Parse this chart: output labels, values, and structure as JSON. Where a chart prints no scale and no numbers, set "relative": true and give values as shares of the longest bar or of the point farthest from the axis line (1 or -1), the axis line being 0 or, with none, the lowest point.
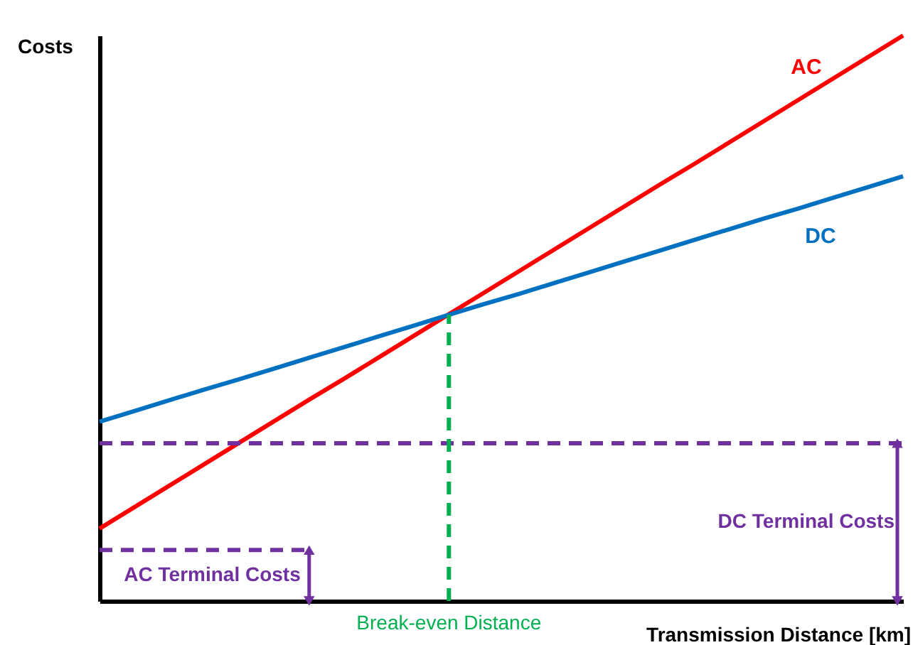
{
  "chart_data": {
    "type": "line",
    "relative": true,
    "xlabel": "Transmission Distance [km]",
    "ylabel": "Costs",
    "marker": "none",
    "categories": [
      null,
      null,
      null,
      null,
      null,
      null,
      null,
      null,
      null,
      null,
      null,
      null,
      null,
      null,
      null,
      null,
      null,
      null,
      null,
      null,
      null,
      null,
      null,
      null
    ],
    "series": [
      {
        "name": "AC",
        "color": "#ff0000",
        "values": [
          0.128,
          0.166,
          0.204,
          0.242,
          0.28,
          0.318,
          0.356,
          0.393,
          0.431,
          0.469,
          0.507,
          0.545,
          0.583,
          0.621,
          0.659,
          0.697,
          0.735,
          0.772,
          0.81,
          0.848,
          0.886,
          0.924,
          0.962,
          1
        ]
      },
      {
        "name": "DC",
        "color": "#0070c0",
        "values": [
          0.317,
          0.336,
          0.355,
          0.374,
          0.392,
          0.411,
          0.43,
          0.449,
          0.468,
          0.487,
          0.506,
          0.525,
          0.543,
          0.562,
          0.581,
          0.6,
          0.619,
          0.638,
          0.657,
          0.676,
          0.694,
          0.713,
          0.732,
          0.751
        ]
      },
      {
        "color": "#7030a0",
        "line_style": "dashed",
        "values": [
          0.09,
          0.09,
          0.09,
          0.09,
          0.09,
          0.09,
          0.09,
          null,
          null,
          null,
          null,
          null,
          null,
          null,
          null,
          null,
          null,
          null,
          null,
          null,
          null,
          null,
          null,
          null
        ]
      },
      {
        "color": "#7030a0",
        "line_style": "dashed",
        "values": [
          0.279,
          0.279,
          0.279,
          0.279,
          0.279,
          0.279,
          0.279,
          0.279,
          0.279,
          0.279,
          0.279,
          0.279,
          0.279,
          0.279,
          0.279,
          0.279,
          0.279,
          0.279,
          0.279,
          0.279,
          0.279,
          0.279,
          0.279,
          0.279
        ]
      }
    ],
    "annotations": [
      "Break-even Distance",
      "AC Terminal Costs",
      "DC Terminal Costs"
    ]
  }
}
